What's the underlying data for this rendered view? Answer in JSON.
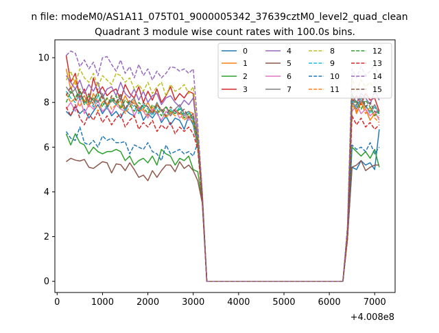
{
  "chart_data": {
    "type": "line",
    "suptitle": "n file: modeM0/AS1A11_075T01_9000005342_37639cztM0_level2_quad_clean",
    "title": "Quadrant 3 module wise count rates with 100.0s bins.",
    "xlabel": "",
    "ylabel": "",
    "x_offset_label": "+4.008e8",
    "xlim": [
      -50,
      7450
    ],
    "ylim": [
      -0.5,
      10.8
    ],
    "xticks": [
      0,
      1000,
      2000,
      3000,
      4000,
      5000,
      6000,
      7000
    ],
    "yticks": [
      0,
      2,
      4,
      6,
      8,
      10
    ],
    "grid": false,
    "legend": {
      "position": "top-right",
      "columns": 4
    },
    "x": [
      200,
      300,
      400,
      500,
      600,
      700,
      800,
      900,
      1000,
      1100,
      1200,
      1300,
      1400,
      1500,
      1600,
      1700,
      1800,
      1900,
      2000,
      2100,
      2200,
      2300,
      2400,
      2500,
      2600,
      2700,
      2800,
      2900,
      3000,
      3100,
      3200,
      3300,
      3400,
      3500,
      3600,
      3700,
      3800,
      3900,
      4000,
      4100,
      4200,
      4300,
      4400,
      4500,
      4600,
      4700,
      4800,
      4900,
      5000,
      5100,
      5200,
      5300,
      5400,
      5500,
      5600,
      5700,
      5800,
      5900,
      6000,
      6100,
      6200,
      6300,
      6400,
      6500,
      6600,
      6700,
      6800,
      6900,
      7000,
      7100
    ],
    "series": [
      {
        "name": "0",
        "color": "#1f77b4",
        "style": "solid",
        "values": [
          7.6,
          7.4,
          7.8,
          7.5,
          7.7,
          7.3,
          7.6,
          7.9,
          7.5,
          7.8,
          7.4,
          7.6,
          7.3,
          7.7,
          7.5,
          7.4,
          7.8,
          7.2,
          7.5,
          7.3,
          7.6,
          7.1,
          7.4,
          7.0,
          7.3,
          7.2,
          6.8,
          7.4,
          7.0,
          6.0,
          3.8,
          0,
          0,
          0,
          0,
          0,
          0,
          0,
          0,
          0,
          0,
          0,
          0,
          0,
          0,
          0,
          0,
          0,
          0,
          0,
          0,
          0,
          0,
          0,
          0,
          0,
          0,
          0,
          0,
          0,
          0,
          0,
          2.0,
          5.1,
          5.0,
          5.4,
          5.2,
          5.3,
          5.0,
          6.8
        ]
      },
      {
        "name": "1",
        "color": "#ff7f0e",
        "style": "solid",
        "values": [
          9.5,
          8.6,
          9.0,
          8.3,
          8.1,
          7.8,
          8.4,
          8.0,
          8.3,
          7.9,
          8.2,
          8.0,
          7.8,
          8.3,
          7.9,
          8.1,
          7.8,
          7.7,
          8.0,
          7.6,
          7.9,
          7.6,
          7.8,
          7.5,
          7.7,
          7.5,
          7.4,
          7.6,
          7.5,
          6.2,
          3.8,
          0,
          0,
          0,
          0,
          0,
          0,
          0,
          0,
          0,
          0,
          0,
          0,
          0,
          0,
          0,
          0,
          0,
          0,
          0,
          0,
          0,
          0,
          0,
          0,
          0,
          0,
          0,
          0,
          0,
          0,
          0,
          2.1,
          8.2,
          7.5,
          8.0,
          7.7,
          7.2,
          7.5,
          7.3
        ]
      },
      {
        "name": "2",
        "color": "#2ca02c",
        "style": "solid",
        "values": [
          6.6,
          6.1,
          6.6,
          6.2,
          6.1,
          5.7,
          6.0,
          5.8,
          5.7,
          5.8,
          5.8,
          5.9,
          5.8,
          5.4,
          5.6,
          5.2,
          5.4,
          5.5,
          5.3,
          5.6,
          5.2,
          5.9,
          5.7,
          5.6,
          5.2,
          5.5,
          5.4,
          5.6,
          5.0,
          4.9,
          3.6,
          0,
          0,
          0,
          0,
          0,
          0,
          0,
          0,
          0,
          0,
          0,
          0,
          0,
          0,
          0,
          0,
          0,
          0,
          0,
          0,
          0,
          0,
          0,
          0,
          0,
          0,
          0,
          0,
          0,
          0,
          0,
          1.9,
          6.0,
          5.8,
          5.6,
          5.8,
          5.5,
          5.9,
          5.1
        ]
      },
      {
        "name": "3",
        "color": "#d62728",
        "style": "solid",
        "values": [
          10.1,
          8.9,
          9.3,
          8.2,
          8.6,
          8.0,
          9.1,
          8.4,
          8.7,
          8.3,
          8.5,
          8.6,
          8.1,
          8.8,
          8.4,
          8.2,
          8.7,
          8.0,
          8.5,
          8.1,
          8.6,
          8.0,
          8.3,
          8.7,
          8.1,
          8.4,
          8.2,
          8.5,
          8.4,
          6.4,
          3.8,
          0,
          0,
          0,
          0,
          0,
          0,
          0,
          0,
          0,
          0,
          0,
          0,
          0,
          0,
          0,
          0,
          0,
          0,
          0,
          0,
          0,
          0,
          0,
          0,
          0,
          0,
          0,
          0,
          0,
          0,
          0,
          2.2,
          8.0,
          8.3,
          7.9,
          8.4,
          8.1,
          8.2,
          7.6
        ]
      },
      {
        "name": "4",
        "color": "#9467bd",
        "style": "solid",
        "values": [
          9.2,
          8.9,
          8.6,
          9.0,
          8.4,
          8.8,
          8.5,
          8.9,
          8.2,
          8.6,
          8.7,
          8.3,
          8.9,
          8.4,
          8.2,
          8.6,
          8.1,
          8.5,
          8.0,
          8.3,
          8.4,
          7.9,
          8.2,
          8.3,
          8.0,
          7.8,
          8.1,
          7.9,
          8.2,
          6.5,
          3.9,
          0,
          0,
          0,
          0,
          0,
          0,
          0,
          0,
          0,
          0,
          0,
          0,
          0,
          0,
          0,
          0,
          0,
          0,
          0,
          0,
          0,
          0,
          0,
          0,
          0,
          0,
          0,
          0,
          0,
          0,
          0,
          2.3,
          8.3,
          8.0,
          8.4,
          8.2,
          7.9,
          8.5,
          8.1
        ]
      },
      {
        "name": "5",
        "color": "#8c564b",
        "style": "solid",
        "values": [
          5.35,
          5.5,
          5.42,
          5.38,
          5.45,
          5.1,
          5.05,
          5.2,
          5.35,
          5.3,
          4.85,
          5.25,
          5.22,
          4.95,
          5.3,
          5.0,
          4.65,
          4.75,
          4.5,
          4.95,
          4.65,
          4.95,
          5.2,
          5.2,
          4.9,
          5.35,
          5.05,
          5.2,
          4.95,
          4.5,
          3.5,
          0,
          0,
          0,
          0,
          0,
          0,
          0,
          0,
          0,
          0,
          0,
          0,
          0,
          0,
          0,
          0,
          0,
          0,
          0,
          0,
          0,
          0,
          0,
          0,
          0,
          0,
          0,
          0,
          0,
          0,
          0,
          1.9,
          5.1,
          5.2,
          5.4,
          4.95,
          5.1,
          5.2,
          5.2
        ]
      },
      {
        "name": "6",
        "color": "#e377c2",
        "style": "solid",
        "values": [
          7.7,
          8.0,
          7.6,
          8.2,
          7.5,
          7.9,
          7.7,
          8.1,
          7.6,
          7.8,
          7.5,
          7.9,
          7.7,
          7.6,
          8.0,
          7.4,
          7.8,
          7.6,
          7.3,
          7.7,
          7.5,
          7.2,
          7.6,
          7.4,
          7.7,
          7.3,
          7.5,
          7.2,
          7.4,
          6.3,
          3.8,
          0,
          0,
          0,
          0,
          0,
          0,
          0,
          0,
          0,
          0,
          0,
          0,
          0,
          0,
          0,
          0,
          0,
          0,
          0,
          0,
          0,
          0,
          0,
          0,
          0,
          0,
          0,
          0,
          0,
          0,
          0,
          2.0,
          7.6,
          7.9,
          7.5,
          7.7,
          7.4,
          7.6,
          7.2
        ]
      },
      {
        "name": "7",
        "color": "#7f7f7f",
        "style": "solid",
        "values": [
          8.7,
          8.4,
          8.6,
          8.1,
          8.3,
          7.9,
          8.2,
          8.0,
          8.4,
          7.8,
          8.1,
          7.9,
          8.3,
          7.7,
          8.0,
          8.2,
          7.6,
          7.9,
          7.8,
          7.5,
          8.0,
          7.6,
          7.8,
          7.4,
          7.7,
          7.9,
          7.5,
          7.6,
          7.3,
          6.4,
          3.9,
          0,
          0,
          0,
          0,
          0,
          0,
          0,
          0,
          0,
          0,
          0,
          0,
          0,
          0,
          0,
          0,
          0,
          0,
          0,
          0,
          0,
          0,
          0,
          0,
          0,
          0,
          0,
          0,
          0,
          0,
          0,
          2.1,
          8.0,
          7.7,
          8.1,
          7.8,
          7.6,
          7.9,
          7.5
        ]
      },
      {
        "name": "8",
        "color": "#bcbd22",
        "style": "dashed",
        "values": [
          9.0,
          9.4,
          8.8,
          9.5,
          9.1,
          8.9,
          9.3,
          8.7,
          9.2,
          9.0,
          8.8,
          9.3,
          9.2,
          8.9,
          9.1,
          8.6,
          8.8,
          8.5,
          8.9,
          8.4,
          8.7,
          8.9,
          8.3,
          8.8,
          8.5,
          8.6,
          8.8,
          8.4,
          8.7,
          6.8,
          4.0,
          0,
          0,
          0,
          0,
          0,
          0,
          0,
          0,
          0,
          0,
          0,
          0,
          0,
          0,
          0,
          0,
          0,
          0,
          0,
          0,
          0,
          0,
          0,
          0,
          0,
          0,
          0,
          0,
          0,
          0,
          0,
          2.4,
          9.1,
          8.5,
          9.0,
          8.7,
          8.9,
          8.6,
          8.4
        ]
      },
      {
        "name": "9",
        "color": "#17becf",
        "style": "dashed",
        "values": [
          8.5,
          8.2,
          8.0,
          8.4,
          7.9,
          8.1,
          7.8,
          8.3,
          8.0,
          7.7,
          8.2,
          7.9,
          8.1,
          7.6,
          8.0,
          7.8,
          7.5,
          7.9,
          7.7,
          7.4,
          7.8,
          7.6,
          7.3,
          7.7,
          7.5,
          7.8,
          7.4,
          7.6,
          7.2,
          6.3,
          3.8,
          0,
          0,
          0,
          0,
          0,
          0,
          0,
          0,
          0,
          0,
          0,
          0,
          0,
          0,
          0,
          0,
          0,
          0,
          0,
          0,
          0,
          0,
          0,
          0,
          0,
          0,
          0,
          0,
          0,
          0,
          0,
          2.0,
          8.1,
          7.8,
          8.2,
          7.9,
          7.5,
          7.8,
          7.4
        ]
      },
      {
        "name": "10",
        "color": "#1f77b4",
        "style": "dashed",
        "values": [
          6.7,
          6.4,
          6.3,
          6.9,
          6.2,
          6.1,
          6.3,
          6.0,
          6.5,
          6.3,
          6.4,
          6.2,
          6.2,
          6.25,
          5.7,
          6.1,
          6.0,
          5.9,
          6.2,
          5.8,
          5.7,
          5.4,
          6.1,
          5.7,
          5.8,
          5.9,
          5.7,
          5.8,
          5.6,
          6.2,
          3.7,
          0,
          0,
          0,
          0,
          0,
          0,
          0,
          0,
          0,
          0,
          0,
          0,
          0,
          0,
          0,
          0,
          0,
          0,
          0,
          0,
          0,
          0,
          0,
          0,
          0,
          0,
          0,
          0,
          0,
          0,
          0,
          2.0,
          6.1,
          5.9,
          6.0,
          5.8,
          6.2,
          5.7,
          6.0
        ]
      },
      {
        "name": "11",
        "color": "#ff7f0e",
        "style": "dashed",
        "values": [
          8.4,
          8.0,
          8.2,
          7.8,
          8.3,
          7.9,
          8.1,
          7.6,
          8.0,
          8.2,
          7.7,
          7.9,
          8.1,
          7.5,
          7.8,
          8.0,
          7.6,
          7.7,
          7.4,
          7.8,
          7.5,
          7.7,
          7.3,
          7.6,
          7.4,
          7.5,
          7.2,
          7.4,
          7.1,
          6.1,
          3.7,
          0,
          0,
          0,
          0,
          0,
          0,
          0,
          0,
          0,
          0,
          0,
          0,
          0,
          0,
          0,
          0,
          0,
          0,
          0,
          0,
          0,
          0,
          0,
          0,
          0,
          0,
          0,
          0,
          0,
          0,
          0,
          2.0,
          7.9,
          7.6,
          8.0,
          7.5,
          7.8,
          7.3,
          7.1
        ]
      },
      {
        "name": "12",
        "color": "#2ca02c",
        "style": "dashed",
        "values": [
          8.0,
          8.5,
          8.2,
          8.6,
          7.9,
          8.3,
          8.1,
          8.4,
          7.8,
          8.2,
          8.0,
          8.3,
          7.7,
          8.1,
          7.9,
          7.6,
          8.0,
          7.8,
          7.5,
          7.9,
          7.7,
          7.4,
          7.8,
          7.6,
          7.5,
          7.7,
          7.3,
          7.5,
          7.2,
          6.2,
          3.8,
          0,
          0,
          0,
          0,
          0,
          0,
          0,
          0,
          0,
          0,
          0,
          0,
          0,
          0,
          0,
          0,
          0,
          0,
          0,
          0,
          0,
          0,
          0,
          0,
          0,
          0,
          0,
          0,
          0,
          0,
          0,
          2.1,
          8.4,
          8.0,
          7.7,
          8.1,
          7.8,
          7.4,
          7.6
        ]
      },
      {
        "name": "13",
        "color": "#d62728",
        "style": "dashed",
        "values": [
          7.8,
          7.4,
          7.9,
          7.3,
          7.0,
          7.5,
          7.2,
          7.6,
          7.1,
          7.4,
          7.0,
          7.3,
          7.5,
          6.9,
          7.2,
          7.4,
          6.8,
          7.1,
          6.9,
          7.2,
          6.7,
          7.0,
          6.8,
          7.1,
          6.6,
          6.9,
          6.7,
          6.9,
          6.6,
          5.9,
          3.6,
          0,
          0,
          0,
          0,
          0,
          0,
          0,
          0,
          0,
          0,
          0,
          0,
          0,
          0,
          0,
          0,
          0,
          0,
          0,
          0,
          0,
          0,
          0,
          0,
          0,
          0,
          0,
          0,
          0,
          0,
          0,
          1.9,
          7.4,
          7.0,
          7.3,
          6.9,
          7.1,
          6.8,
          7.0
        ]
      },
      {
        "name": "14",
        "color": "#9467bd",
        "style": "dashed",
        "values": [
          10.1,
          10.3,
          10.2,
          9.6,
          9.9,
          9.5,
          9.8,
          9.2,
          10.0,
          10.05,
          9.7,
          9.4,
          9.9,
          9.3,
          9.6,
          9.1,
          9.7,
          9.2,
          9.5,
          9.0,
          9.4,
          9.1,
          9.3,
          9.6,
          9.55,
          9.4,
          9.5,
          9.3,
          9.5,
          7.0,
          4.0,
          0,
          0,
          0,
          0,
          0,
          0,
          0,
          0,
          0,
          0,
          0,
          0,
          0,
          0,
          0,
          0,
          0,
          0,
          0,
          0,
          0,
          0,
          0,
          0,
          0,
          0,
          0,
          0,
          0,
          0,
          0,
          2.5,
          9.5,
          9.1,
          9.6,
          9.2,
          9.4,
          9.7,
          9.1
        ]
      },
      {
        "name": "15",
        "color": "#8c564b",
        "style": "dashed",
        "values": [
          8.3,
          8.7,
          8.1,
          8.5,
          8.0,
          8.4,
          7.9,
          8.6,
          8.2,
          7.8,
          8.3,
          8.0,
          8.4,
          7.7,
          8.1,
          7.9,
          7.6,
          8.0,
          7.8,
          7.5,
          7.9,
          7.7,
          7.4,
          7.8,
          7.6,
          7.5,
          7.7,
          7.3,
          7.5,
          6.3,
          3.8,
          0,
          0,
          0,
          0,
          0,
          0,
          0,
          0,
          0,
          0,
          0,
          0,
          0,
          0,
          0,
          0,
          0,
          0,
          0,
          0,
          0,
          0,
          0,
          0,
          0,
          0,
          0,
          0,
          0,
          0,
          0,
          2.1,
          8.2,
          7.9,
          8.3,
          7.8,
          8.0,
          7.6,
          7.5
        ]
      }
    ]
  }
}
